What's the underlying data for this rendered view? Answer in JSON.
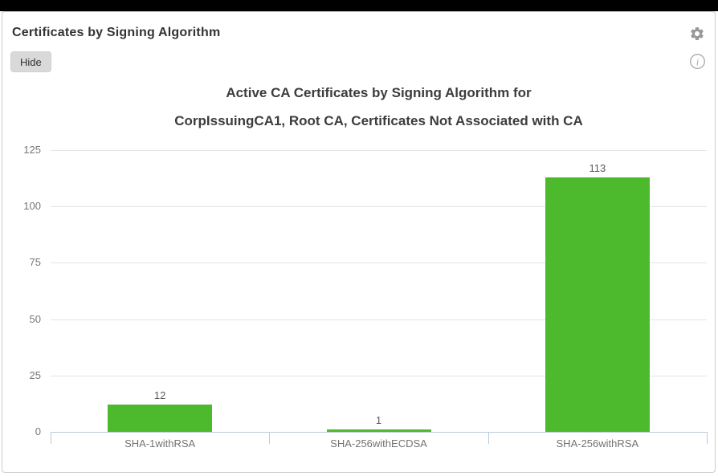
{
  "window": {
    "top_bar_color": "#000000"
  },
  "panel": {
    "title": "Certificates by Signing Algorithm",
    "hide_button_label": "Hide",
    "settings_icon": "gear-icon",
    "info_icon": "info-circle-icon"
  },
  "colors": {
    "bar_green": "#4dba2e",
    "axis_border": "#b9cbdd",
    "gridline": "#e5e5e5",
    "icon_gray": "#999999",
    "panel_border": "#cccccc",
    "label_gray": "#737373",
    "value_label": "#58595b"
  },
  "chart_data": {
    "type": "bar",
    "title_line1": "Active CA Certificates by Signing Algorithm for",
    "title_line2": "CorpIssuingCA1, Root CA, Certificates Not Associated with CA",
    "categories": [
      "SHA-1withRSA",
      "SHA-256withECDSA",
      "SHA-256withRSA"
    ],
    "values": [
      12,
      1,
      113
    ],
    "y_ticks": [
      0,
      25,
      50,
      75,
      100,
      125
    ],
    "ylim": [
      0,
      125
    ],
    "xlabel": "",
    "ylabel": "",
    "grid": "horizontal-on",
    "legend": "none",
    "bar_color": "#4dba2e"
  }
}
